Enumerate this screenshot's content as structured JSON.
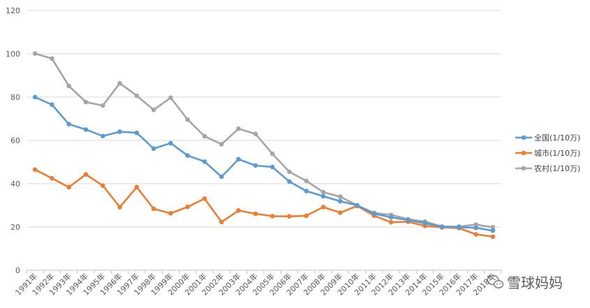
{
  "chart_data": {
    "type": "line",
    "title": "",
    "xlabel": "",
    "ylabel": "",
    "categories": [
      "1991年",
      "1992年",
      "1993年",
      "1994年",
      "1995年",
      "1996年",
      "1997年",
      "1998年",
      "1999年",
      "2000年",
      "2001年",
      "2002年",
      "2003年",
      "2004年",
      "2005年",
      "2006年",
      "2007年",
      "2008年",
      "2009年",
      "2010年",
      "2011年",
      "2012年",
      "2013年",
      "2014年",
      "2015年",
      "2016年",
      "2017年",
      "2018年"
    ],
    "ylim": [
      0,
      120
    ],
    "yticks": [
      "0",
      "20",
      "40",
      "60",
      "80",
      "100",
      "120"
    ],
    "grid": true,
    "legend_position": "right",
    "series": [
      {
        "name": "全国(1/10万)",
        "color": "#5b9bd5",
        "values": [
          80,
          76.5,
          67.5,
          65,
          62,
          64,
          63.5,
          56.2,
          58.7,
          53,
          50.2,
          43.2,
          51.3,
          48.4,
          47.7,
          41,
          36.6,
          34.2,
          31.9,
          30,
          26.1,
          24.5,
          23.2,
          21.7,
          20.1,
          19.9,
          19.6,
          18.3
        ]
      },
      {
        "name": "城市(1/10万)",
        "color": "#ed7d31",
        "values": [
          46.5,
          42.5,
          38.4,
          44.3,
          39.1,
          29.2,
          38.4,
          28.4,
          26.3,
          29.3,
          33.1,
          22.3,
          27.6,
          26.1,
          25,
          24.9,
          25.2,
          29.2,
          26.6,
          29.7,
          25.2,
          22.2,
          22.4,
          20.5,
          19.8,
          19.5,
          16.6,
          15.5
        ]
      },
      {
        "name": "农村(1/10万)",
        "color": "#a5a5a5",
        "values": [
          100.1,
          97.8,
          85.1,
          77.7,
          76.1,
          86.4,
          80.6,
          74.1,
          79.7,
          69.6,
          61.9,
          58.2,
          65.4,
          63,
          53.8,
          45.5,
          41.3,
          36.1,
          34,
          30,
          26.5,
          25.6,
          23.6,
          22.5,
          20.2,
          20.2,
          21.1,
          19.9
        ]
      }
    ]
  },
  "watermark": {
    "icon": "wechat-icon",
    "text": "雪球妈妈"
  }
}
